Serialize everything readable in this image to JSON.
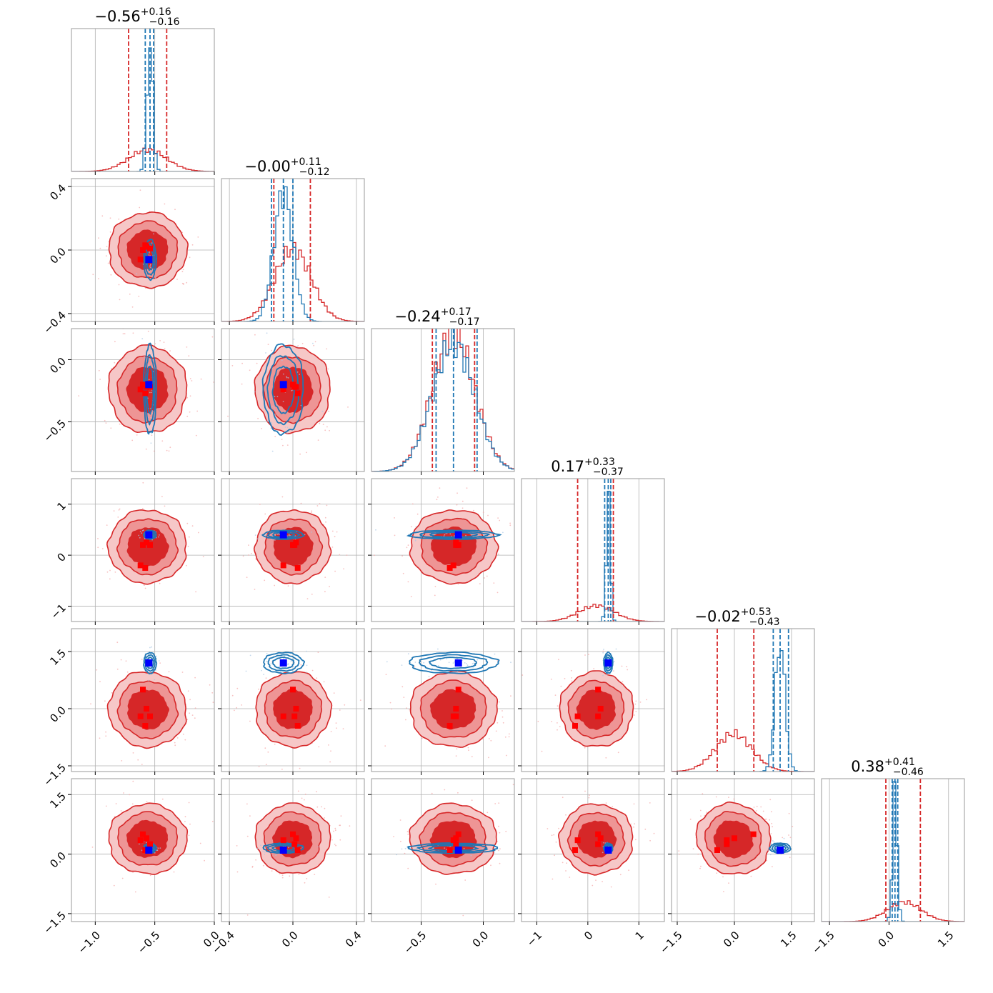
{
  "chart_data": {
    "type": "corner",
    "n_params": 6,
    "colors": {
      "wide": "#d62728",
      "narrow": "#1f77b4",
      "truth_red": "#ff0000",
      "truth_blue": "#0000ff"
    },
    "grid": true,
    "titles": [
      {
        "median": "−0.56",
        "plus": "+0.16",
        "minus": "−0.16"
      },
      {
        "median": "−0.00",
        "plus": "+0.11",
        "minus": "−0.12"
      },
      {
        "median": "−0.24",
        "plus": "+0.17",
        "minus": "−0.17"
      },
      {
        "median": "0.17",
        "plus": "+0.33",
        "minus": "−0.37"
      },
      {
        "median": "−0.02",
        "plus": "+0.53",
        "minus": "−0.43"
      },
      {
        "median": "0.38",
        "plus": "+0.41",
        "minus": "−0.46"
      }
    ],
    "axes": [
      {
        "range": [
          -1.2,
          0.0
        ],
        "ticks": [
          -1.0,
          -0.5,
          0.0
        ],
        "labels": [
          "−1.0",
          "−0.5",
          "0.0"
        ]
      },
      {
        "range": [
          -0.45,
          0.45
        ],
        "ticks": [
          -0.4,
          0.0,
          0.4
        ],
        "labels": [
          "−0.4",
          "0.0",
          "0.4"
        ]
      },
      {
        "range": [
          -0.9,
          0.25
        ],
        "ticks": [
          -0.5,
          0.0
        ],
        "labels": [
          "−0.5",
          "0.0"
        ]
      },
      {
        "range": [
          -1.3,
          1.5
        ],
        "ticks": [
          -1,
          0,
          1
        ],
        "labels": [
          "−1",
          "0",
          "1"
        ]
      },
      {
        "range": [
          -1.65,
          2.1
        ],
        "ticks": [
          -1.5,
          0.0,
          1.5
        ],
        "labels": [
          "−1.5",
          "0.0",
          "1.5"
        ]
      },
      {
        "range": [
          -1.7,
          1.9
        ],
        "ticks": [
          -1.5,
          0.0,
          1.5
        ],
        "labels": [
          "−1.5",
          "0.0",
          "1.5"
        ]
      }
    ],
    "diagonal": [
      {
        "red_mu": -0.56,
        "red_sd": 0.16,
        "blue_mu": -0.54,
        "blue_sd": 0.025,
        "red_q": [
          -0.72,
          -0.4
        ],
        "blue_q": [
          -0.58,
          -0.51
        ]
      },
      {
        "red_mu": 0.0,
        "red_sd": 0.115,
        "blue_mu": -0.06,
        "blue_sd": 0.06,
        "red_q": [
          -0.12,
          0.11
        ],
        "blue_q": [
          -0.135,
          0.0
        ]
      },
      {
        "red_mu": -0.24,
        "red_sd": 0.17,
        "blue_mu": -0.24,
        "blue_sd": 0.17,
        "red_q": [
          -0.41,
          -0.07
        ],
        "blue_q": [
          -0.38,
          -0.05
        ]
      },
      {
        "red_mu": 0.17,
        "red_sd": 0.35,
        "blue_mu": 0.4,
        "blue_sd": 0.04,
        "red_q": [
          -0.2,
          0.5
        ],
        "blue_q": [
          0.33,
          0.45
        ]
      },
      {
        "red_mu": -0.02,
        "red_sd": 0.48,
        "blue_mu": 1.2,
        "blue_sd": 0.13,
        "red_q": [
          -0.45,
          0.51
        ],
        "blue_q": [
          1.02,
          1.42
        ]
      },
      {
        "red_mu": 0.38,
        "red_sd": 0.43,
        "blue_mu": 0.15,
        "blue_sd": 0.06,
        "red_q": [
          -0.08,
          0.79
        ],
        "blue_q": [
          0.08,
          0.22
        ]
      }
    ],
    "blue_truth": [
      -0.55,
      -0.06,
      -0.2,
      0.4,
      1.2,
      0.1
    ],
    "red_points": [
      [
        -0.6,
        0.0,
        -0.2,
        0.2,
        0.5,
        0.5
      ],
      [
        -0.57,
        0.02,
        -0.22,
        0.25,
        0.0,
        0.4
      ],
      [
        -0.62,
        -0.06,
        -0.24,
        -0.2,
        -0.2,
        0.35
      ],
      [
        -0.58,
        0.03,
        -0.27,
        -0.25,
        -0.45,
        0.1
      ],
      [
        -0.54,
        0.01,
        -0.22,
        0.2,
        -0.2,
        0.25
      ]
    ]
  }
}
